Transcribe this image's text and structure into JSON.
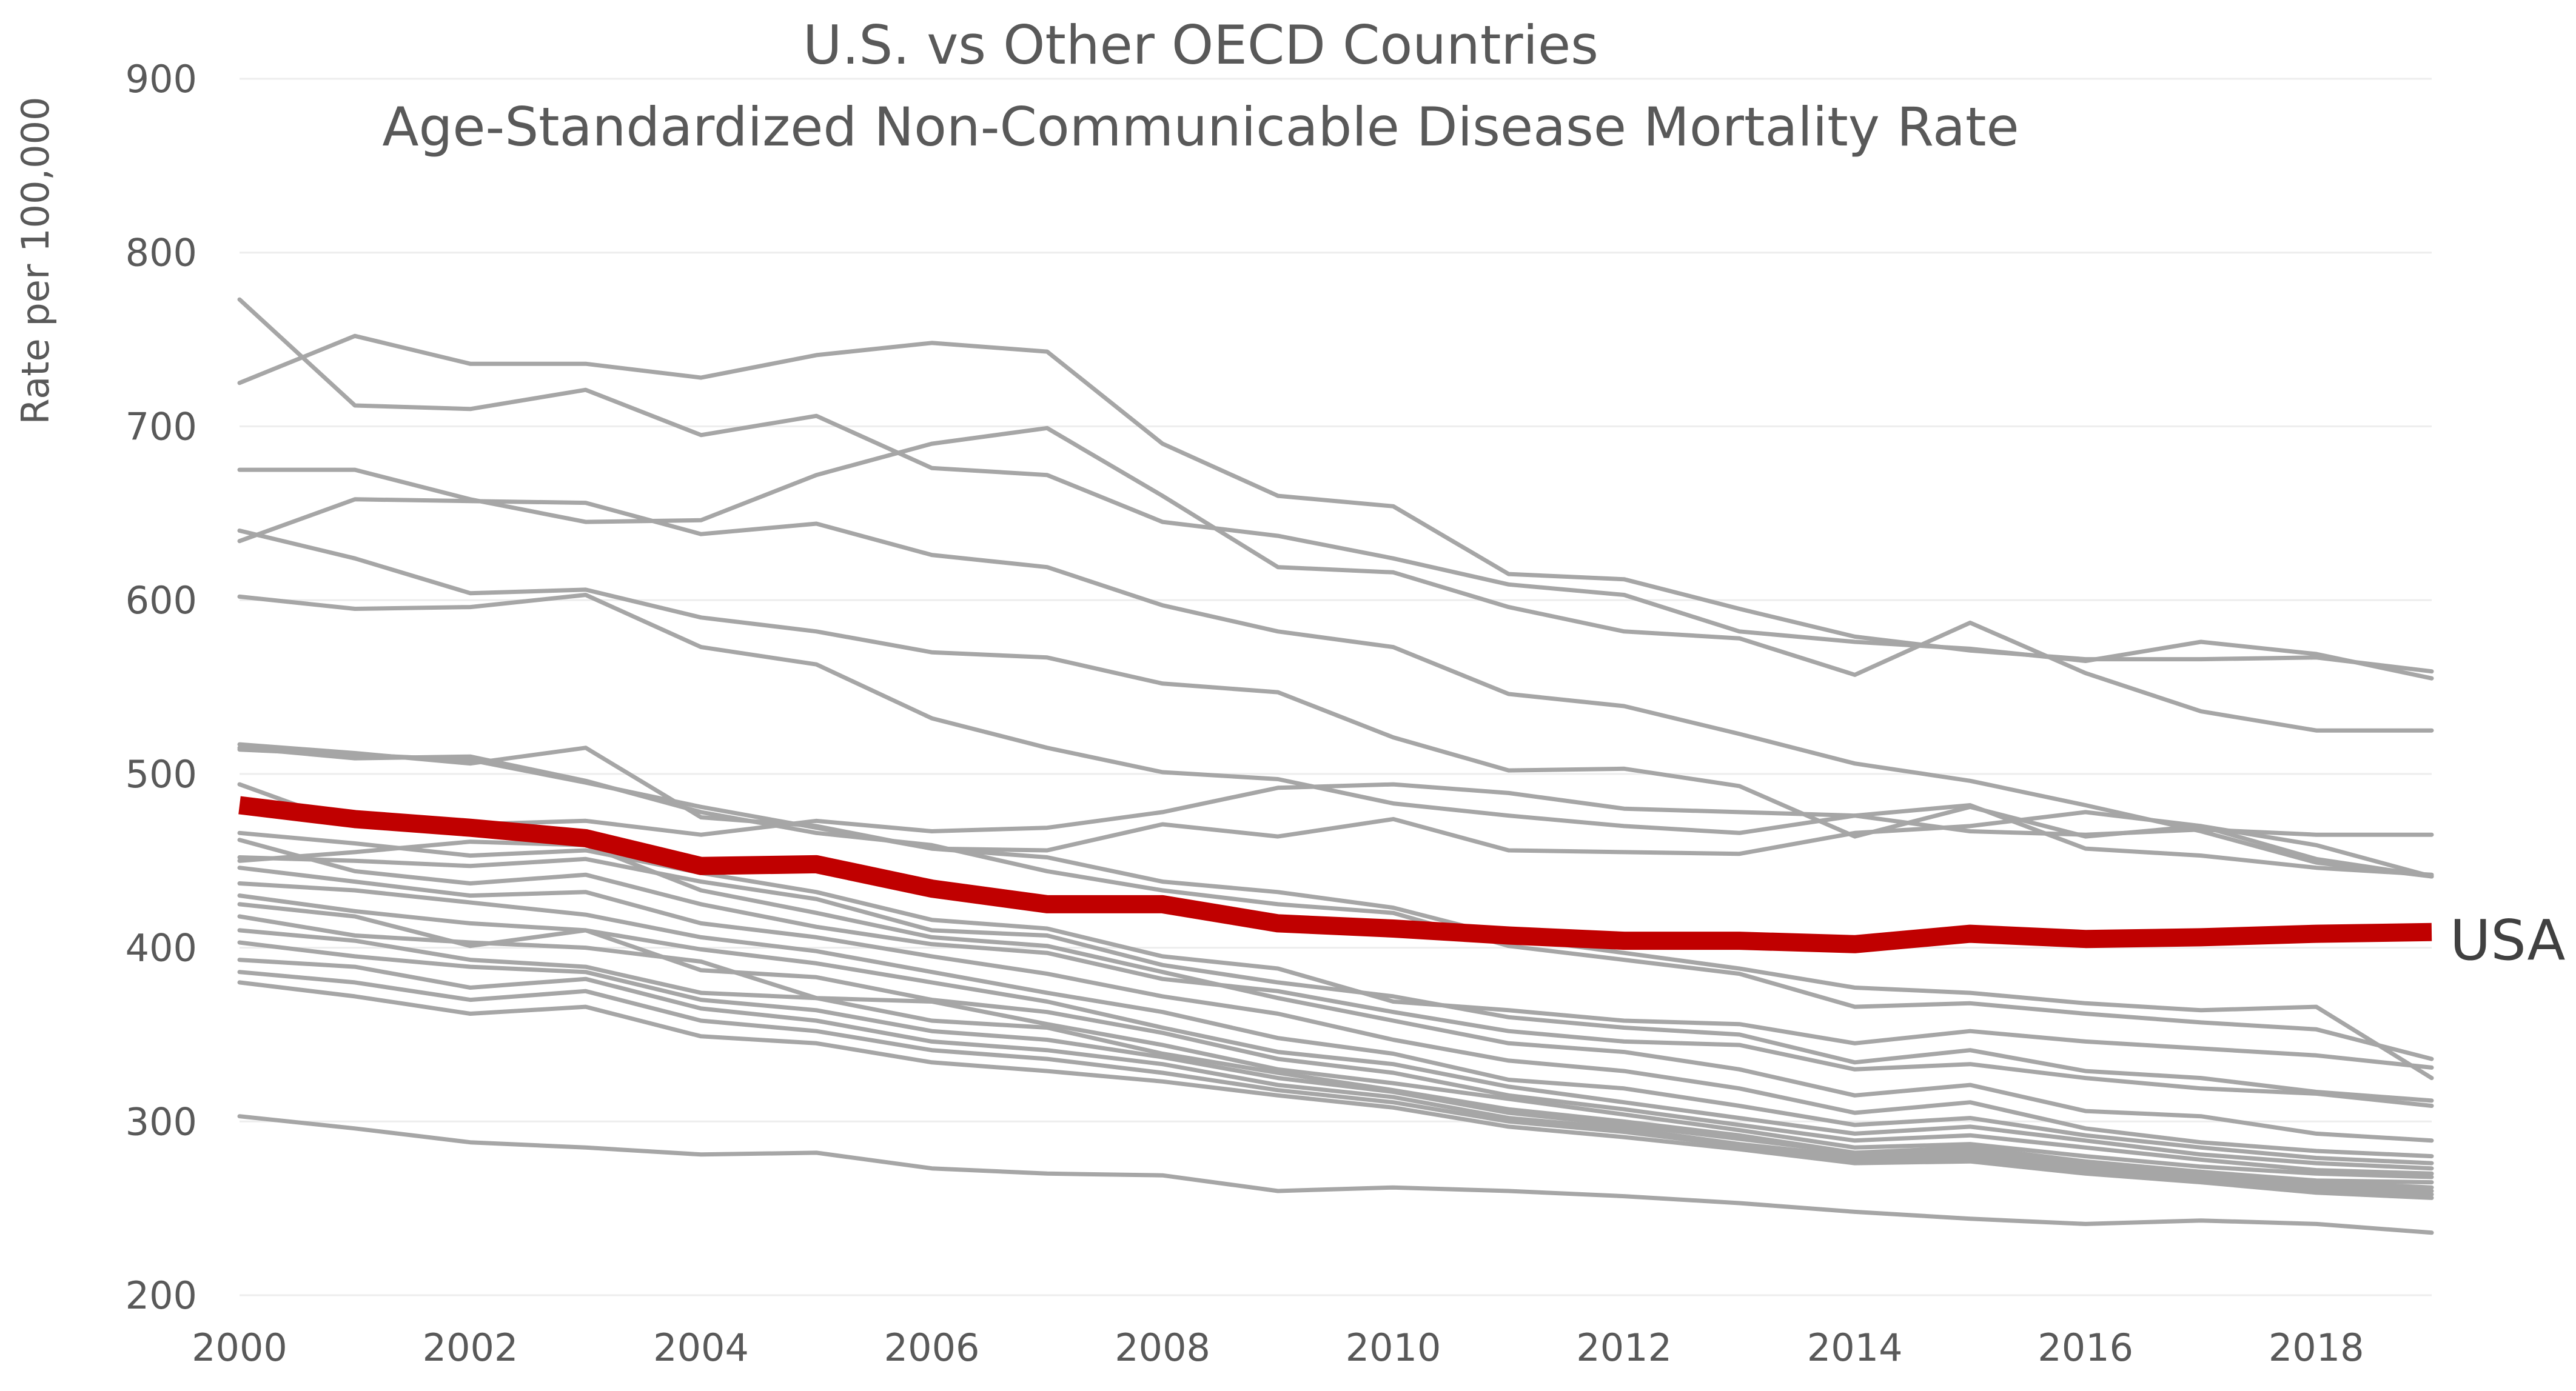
{
  "colors": {
    "background": "#ffffff",
    "grid": "#ededed",
    "other_countries": "#a6a6a6",
    "usa": "#c00000",
    "text": "#595959"
  },
  "chart_data": {
    "type": "line",
    "title_line1": "U.S. vs Other OECD Countries",
    "title_line2": "Age-Standardized Non-Communicable Disease Mortality Rate",
    "xlabel": "",
    "ylabel": "Rate per 100,000",
    "grid": true,
    "ylim": [
      200,
      900
    ],
    "xlim": [
      2000,
      2019
    ],
    "y_ticks": [
      "200",
      "300",
      "400",
      "500",
      "600",
      "700",
      "800",
      "900"
    ],
    "x_ticks": [
      "2000",
      "2002",
      "2004",
      "2006",
      "2008",
      "2010",
      "2012",
      "2014",
      "2016",
      "2018"
    ],
    "x": [
      2000,
      2001,
      2002,
      2003,
      2004,
      2005,
      2006,
      2007,
      2008,
      2009,
      2010,
      2011,
      2012,
      2013,
      2014,
      2015,
      2016,
      2017,
      2018,
      2019
    ],
    "highlight_series": {
      "name": "USA",
      "values": [
        482,
        474,
        469,
        463,
        447,
        448,
        434,
        425,
        425,
        414,
        411,
        407,
        404,
        404,
        402,
        408,
        405,
        406,
        408,
        409
      ]
    },
    "other_series": [
      [
        725,
        752,
        736,
        736,
        728,
        741,
        748,
        743,
        690,
        660,
        654,
        615,
        612,
        595,
        579,
        571,
        566,
        566,
        567,
        559
      ],
      [
        773,
        712,
        710,
        721,
        695,
        706,
        676,
        672,
        645,
        637,
        624,
        609,
        603,
        582,
        576,
        572,
        565,
        576,
        569,
        555
      ],
      [
        675,
        675,
        658,
        645,
        646,
        672,
        690,
        699,
        660,
        619,
        616,
        596,
        582,
        578,
        557,
        587,
        558,
        536,
        525,
        525
      ],
      [
        634,
        658,
        657,
        656,
        638,
        644,
        626,
        619,
        597,
        582,
        573,
        546,
        539,
        523,
        506,
        496,
        482,
        467,
        449,
        441
      ],
      [
        640,
        624,
        604,
        606,
        590,
        582,
        570,
        567,
        552,
        547,
        521,
        502,
        503,
        493,
        464,
        481,
        464,
        470,
        459,
        441
      ],
      [
        602,
        595,
        596,
        603,
        573,
        563,
        532,
        515,
        501,
        497,
        483,
        476,
        470,
        466,
        476,
        467,
        465,
        468,
        465,
        465
      ],
      [
        517,
        512,
        506,
        515,
        475,
        470,
        457,
        456,
        471,
        464,
        474,
        456,
        455,
        454,
        466,
        470,
        478,
        470,
        451,
        441
      ],
      [
        514,
        511,
        508,
        495,
        481,
        469,
        457,
        452,
        438,
        432,
        423,
        406,
        397,
        388,
        377,
        374,
        368,
        364,
        366,
        325
      ],
      [
        494,
        470,
        471,
        473,
        465,
        473,
        467,
        469,
        478,
        492,
        494,
        489,
        480,
        478,
        476,
        482,
        457,
        453,
        446,
        442
      ],
      [
        515,
        509,
        510,
        496,
        478,
        466,
        459,
        444,
        433,
        425,
        420,
        401,
        393,
        385,
        366,
        368,
        362,
        357,
        353,
        336
      ],
      [
        466,
        460,
        453,
        456,
        443,
        432,
        416,
        411,
        395,
        388,
        369,
        364,
        358,
        356,
        345,
        352,
        346,
        342,
        338,
        331
      ],
      [
        452,
        450,
        447,
        451,
        438,
        428,
        410,
        407,
        390,
        380,
        372,
        360,
        354,
        350,
        334,
        341,
        329,
        325,
        317,
        312
      ],
      [
        462,
        444,
        437,
        442,
        425,
        412,
        402,
        397,
        382,
        375,
        363,
        352,
        346,
        344,
        330,
        333,
        325,
        319,
        316,
        309
      ],
      [
        450,
        455,
        461,
        459,
        433,
        420,
        406,
        401,
        386,
        371,
        358,
        345,
        340,
        330,
        315,
        321,
        306,
        303,
        293,
        289
      ],
      [
        446,
        438,
        430,
        432,
        414,
        406,
        395,
        385,
        372,
        362,
        347,
        335,
        329,
        319,
        305,
        311,
        296,
        288,
        283,
        280
      ],
      [
        437,
        433,
        426,
        419,
        406,
        398,
        386,
        374,
        363,
        348,
        339,
        324,
        319,
        309,
        298,
        302,
        292,
        285,
        279,
        276
      ],
      [
        430,
        421,
        414,
        410,
        399,
        391,
        380,
        369,
        354,
        340,
        333,
        320,
        311,
        302,
        293,
        297,
        289,
        281,
        276,
        273
      ],
      [
        425,
        418,
        401,
        410,
        387,
        383,
        370,
        363,
        351,
        336,
        328,
        315,
        307,
        298,
        289,
        292,
        285,
        278,
        272,
        270
      ],
      [
        418,
        407,
        403,
        400,
        392,
        371,
        369,
        356,
        344,
        330,
        322,
        313,
        304,
        295,
        285,
        287,
        280,
        274,
        270,
        268
      ],
      [
        410,
        404,
        393,
        389,
        374,
        371,
        358,
        354,
        339,
        328,
        318,
        307,
        300,
        292,
        282,
        285,
        277,
        271,
        266,
        265
      ],
      [
        403,
        395,
        389,
        386,
        370,
        364,
        352,
        347,
        337,
        325,
        317,
        305,
        298,
        290,
        282,
        283,
        276,
        271,
        265,
        262
      ],
      [
        393,
        389,
        377,
        382,
        365,
        358,
        346,
        341,
        333,
        321,
        314,
        302,
        296,
        287,
        280,
        281,
        274,
        269,
        263,
        260
      ],
      [
        386,
        380,
        370,
        375,
        358,
        352,
        341,
        336,
        328,
        318,
        311,
        300,
        294,
        286,
        278,
        279,
        272,
        267,
        261,
        258
      ],
      [
        380,
        372,
        362,
        366,
        349,
        345,
        334,
        329,
        323,
        315,
        308,
        297,
        291,
        284,
        276,
        277,
        270,
        265,
        259,
        256
      ],
      [
        303,
        296,
        288,
        285,
        281,
        282,
        273,
        270,
        269,
        260,
        262,
        260,
        257,
        253,
        248,
        244,
        241,
        243,
        241,
        236
      ]
    ]
  }
}
